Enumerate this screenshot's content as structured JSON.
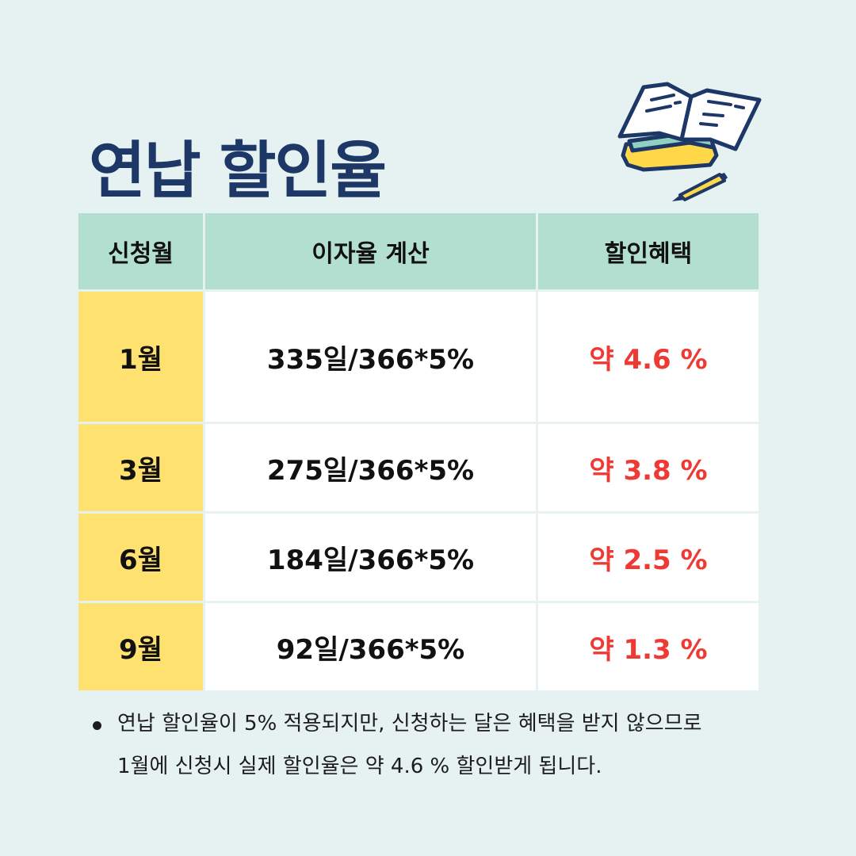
{
  "title": "연납 할인율",
  "table": {
    "headers": [
      "신청월",
      "이자율 계산",
      "할인혜택"
    ],
    "rows": [
      {
        "month": "1월",
        "calc": "335일/366*5%",
        "benefit": "약 4.6 %"
      },
      {
        "month": "3월",
        "calc": "275일/366*5%",
        "benefit": "약 3.8 %"
      },
      {
        "month": "6월",
        "calc": "184일/366*5%",
        "benefit": "약 2.5 %"
      },
      {
        "month": "9월",
        "calc": "92일/366*5%",
        "benefit": "약 1.3 %"
      }
    ]
  },
  "note": {
    "line1": "연납 할인율이 5% 적용되지만, 신청하는 달은 혜택을 받지 않으므로",
    "line2": "1월에 신청시 실제 할인율은 약 4.6 % 할인받게 됩니다."
  },
  "colors": {
    "background": "#e6f2f1",
    "title": "#1d3766",
    "header": "#b3dfd1",
    "month_cell": "#ffe170",
    "benefit_text": "#ee3a35"
  },
  "icons": [
    "open-book-icon",
    "pencil-icon"
  ]
}
